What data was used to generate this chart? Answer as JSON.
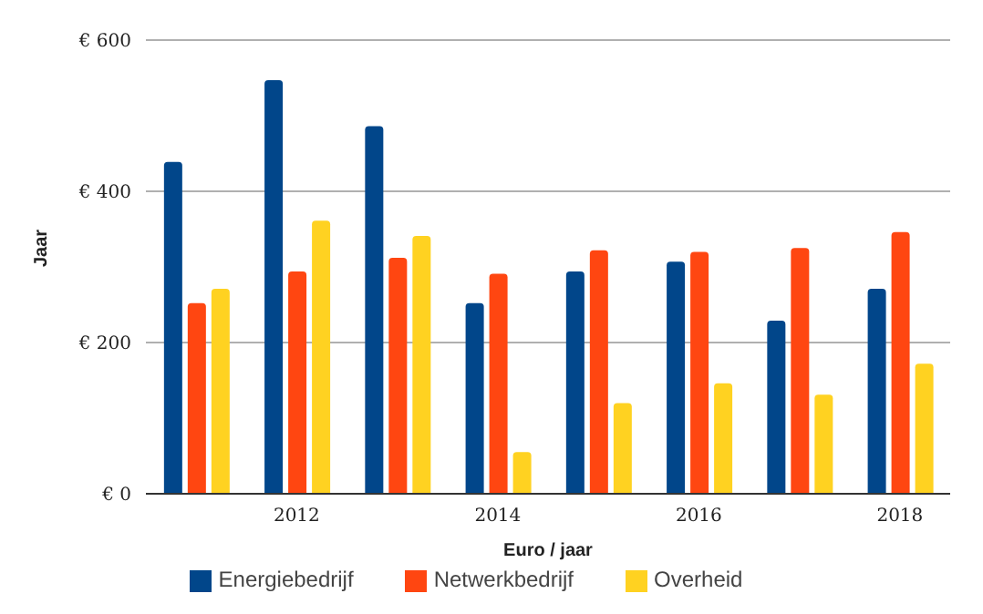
{
  "chart_data": {
    "type": "bar",
    "xlabel": "Euro / jaar",
    "ylabel": "Jaar",
    "categories": [
      null,
      "2012",
      null,
      "2014",
      null,
      "2016",
      null,
      "2018"
    ],
    "series": [
      {
        "name": "Energiebedrijf",
        "color": "#01468a",
        "values": [
          439,
          547,
          486,
          252,
          294,
          307,
          229,
          271
        ]
      },
      {
        "name": "Netwerkbedrijf",
        "color": "#ff4611",
        "values": [
          252,
          294,
          312,
          291,
          322,
          320,
          325,
          346
        ]
      },
      {
        "name": "Overheid",
        "color": "#ffd221",
        "values": [
          271,
          361,
          341,
          55,
          120,
          146,
          131,
          172
        ]
      }
    ],
    "ylim": [
      0,
      600
    ],
    "yticks": [
      {
        "value": 0,
        "label": "€ 0"
      },
      {
        "value": 200,
        "label": "€ 200"
      },
      {
        "value": 400,
        "label": "€ 400"
      },
      {
        "value": 600,
        "label": "€ 600"
      }
    ],
    "grid": "y",
    "legend": "bottom"
  }
}
